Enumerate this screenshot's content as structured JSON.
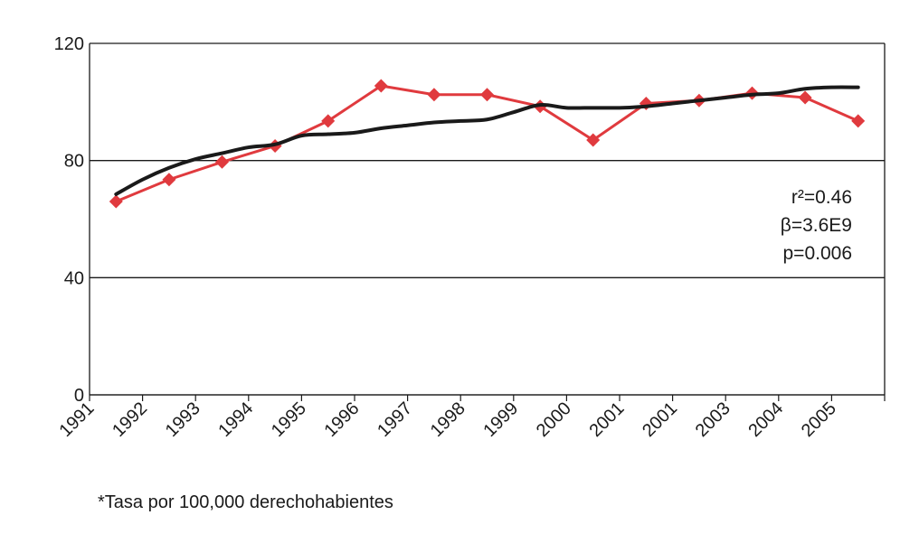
{
  "chart_data": {
    "type": "line",
    "title": "",
    "xlabel": "",
    "ylabel": "",
    "ylim": [
      0,
      120
    ],
    "y_ticks": [
      "0",
      "40",
      "80",
      "120"
    ],
    "categories": [
      "1991",
      "1992",
      "1993",
      "1994",
      "1995",
      "1996",
      "1997",
      "1998",
      "1999",
      "2000",
      "2001",
      "2001",
      "2003",
      "2004",
      "2005"
    ],
    "grid": "horizontal",
    "series": [
      {
        "color": "#e03a3e",
        "marker": "diamond",
        "values": [
          66,
          73.5,
          79.5,
          85,
          93.5,
          105.5,
          102.5,
          102.5,
          98.5,
          87,
          99.5,
          100.5,
          103,
          101.5,
          93.5
        ]
      },
      {
        "color": "#1a1a1a",
        "marker": "none",
        "smooth": true,
        "x": [
          0,
          0.5,
          1,
          1.5,
          2,
          2.5,
          3,
          3.5,
          4,
          4.5,
          5,
          5.5,
          6,
          6.5,
          7,
          7.5,
          8,
          8.5,
          9,
          9.5,
          10,
          10.5,
          11,
          11.5,
          12,
          12.5,
          13,
          13.5,
          14
        ],
        "values": [
          68.5,
          73.5,
          77.5,
          80.5,
          82.5,
          84.5,
          85.5,
          88.5,
          89,
          89.5,
          91,
          92,
          93,
          93.5,
          94,
          96.5,
          99,
          98,
          98,
          98,
          98.5,
          99.5,
          100.5,
          101.5,
          102.5,
          103,
          104.5,
          105,
          105
        ]
      }
    ],
    "annotations": {
      "r2": "r²=0.46",
      "beta": "β=3.6E9",
      "p": "p=0.006"
    }
  },
  "footnote": "*Tasa por 100,000 derechohabientes"
}
